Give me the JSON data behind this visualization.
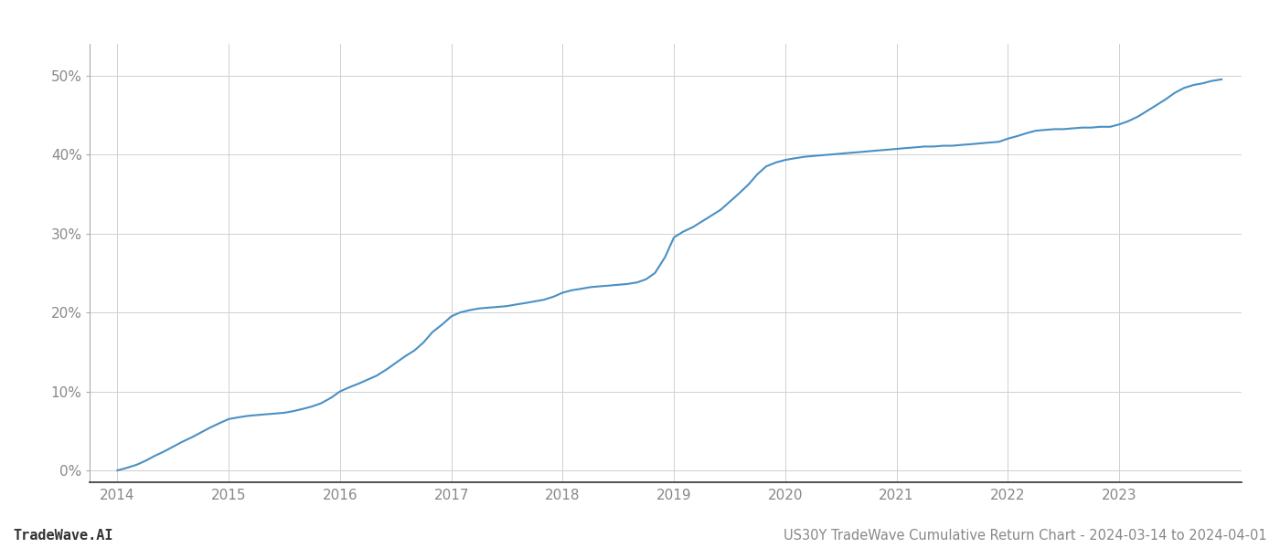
{
  "title": "US30Y TradeWave Cumulative Return Chart - 2024-03-14 to 2024-04-01",
  "watermark": "TradeWave.AI",
  "line_color": "#4a90c4",
  "background_color": "#ffffff",
  "grid_color": "#d0d0d0",
  "x_values": [
    2014.0,
    2014.08,
    2014.17,
    2014.25,
    2014.33,
    2014.42,
    2014.5,
    2014.58,
    2014.67,
    2014.75,
    2014.83,
    2014.92,
    2015.0,
    2015.08,
    2015.17,
    2015.25,
    2015.33,
    2015.42,
    2015.5,
    2015.58,
    2015.67,
    2015.75,
    2015.83,
    2015.92,
    2016.0,
    2016.08,
    2016.17,
    2016.25,
    2016.33,
    2016.42,
    2016.5,
    2016.58,
    2016.67,
    2016.75,
    2016.83,
    2016.92,
    2017.0,
    2017.08,
    2017.17,
    2017.25,
    2017.33,
    2017.42,
    2017.5,
    2017.58,
    2017.67,
    2017.75,
    2017.83,
    2017.92,
    2018.0,
    2018.08,
    2018.17,
    2018.25,
    2018.33,
    2018.42,
    2018.5,
    2018.58,
    2018.67,
    2018.75,
    2018.83,
    2018.92,
    2019.0,
    2019.08,
    2019.17,
    2019.25,
    2019.33,
    2019.42,
    2019.5,
    2019.58,
    2019.67,
    2019.75,
    2019.83,
    2019.92,
    2020.0,
    2020.08,
    2020.17,
    2020.25,
    2020.33,
    2020.42,
    2020.5,
    2020.58,
    2020.67,
    2020.75,
    2020.83,
    2020.92,
    2021.0,
    2021.08,
    2021.17,
    2021.25,
    2021.33,
    2021.42,
    2021.5,
    2021.58,
    2021.67,
    2021.75,
    2021.83,
    2021.92,
    2022.0,
    2022.08,
    2022.17,
    2022.25,
    2022.33,
    2022.42,
    2022.5,
    2022.58,
    2022.67,
    2022.75,
    2022.83,
    2022.92,
    2023.0,
    2023.08,
    2023.17,
    2023.25,
    2023.33,
    2023.42,
    2023.5,
    2023.58,
    2023.67,
    2023.75,
    2023.83,
    2023.92
  ],
  "y_values": [
    0.0,
    0.3,
    0.7,
    1.2,
    1.8,
    2.4,
    3.0,
    3.6,
    4.2,
    4.8,
    5.4,
    6.0,
    6.5,
    6.7,
    6.9,
    7.0,
    7.1,
    7.2,
    7.3,
    7.5,
    7.8,
    8.1,
    8.5,
    9.2,
    10.0,
    10.5,
    11.0,
    11.5,
    12.0,
    12.8,
    13.6,
    14.4,
    15.2,
    16.2,
    17.5,
    18.5,
    19.5,
    20.0,
    20.3,
    20.5,
    20.6,
    20.7,
    20.8,
    21.0,
    21.2,
    21.4,
    21.6,
    22.0,
    22.5,
    22.8,
    23.0,
    23.2,
    23.3,
    23.4,
    23.5,
    23.6,
    23.8,
    24.2,
    25.0,
    27.0,
    29.5,
    30.2,
    30.8,
    31.5,
    32.2,
    33.0,
    34.0,
    35.0,
    36.2,
    37.5,
    38.5,
    39.0,
    39.3,
    39.5,
    39.7,
    39.8,
    39.9,
    40.0,
    40.1,
    40.2,
    40.3,
    40.4,
    40.5,
    40.6,
    40.7,
    40.8,
    40.9,
    41.0,
    41.0,
    41.1,
    41.1,
    41.2,
    41.3,
    41.4,
    41.5,
    41.6,
    42.0,
    42.3,
    42.7,
    43.0,
    43.1,
    43.2,
    43.2,
    43.3,
    43.4,
    43.4,
    43.5,
    43.5,
    43.8,
    44.2,
    44.8,
    45.5,
    46.2,
    47.0,
    47.8,
    48.4,
    48.8,
    49.0,
    49.3,
    49.5
  ],
  "xlim": [
    2013.75,
    2024.1
  ],
  "ylim": [
    -1.5,
    54
  ],
  "yticks": [
    0,
    10,
    20,
    30,
    40,
    50
  ],
  "xticks": [
    2014,
    2015,
    2016,
    2017,
    2018,
    2019,
    2020,
    2021,
    2022,
    2023
  ],
  "line_width": 1.5,
  "title_fontsize": 10.5,
  "watermark_fontsize": 11,
  "tick_fontsize": 11
}
